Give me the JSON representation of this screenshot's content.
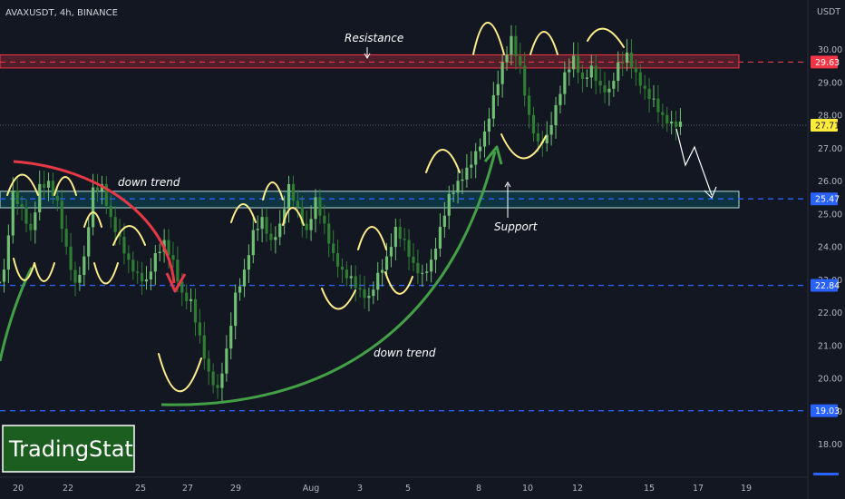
{
  "header": {
    "symbol_line": "AVAXUSDT, 4h, BINANCE",
    "currency": "USDT"
  },
  "logo": {
    "text": "TradingStat"
  },
  "colors": {
    "up": "#4caf50",
    "down": "#4caf50",
    "resistance": "#f23645",
    "support": "#2962ff",
    "curve_red": "#e53946",
    "curve_green": "#43a047",
    "highlight": "#ffee8a"
  },
  "annotations": {
    "resistance": "Resistance",
    "support": "Support",
    "down_trend_upper": "down trend",
    "down_trend_lower": "down trend"
  },
  "chart_data": {
    "type": "candlestick",
    "ylim": [
      17.2,
      31.0
    ],
    "y_ticks": [
      18.0,
      19.0,
      20.0,
      21.0,
      22.0,
      23.0,
      24.0,
      25.0,
      26.0,
      27.0,
      28.0,
      29.0,
      30.0
    ],
    "x_ticks": [
      "20",
      "22",
      "25",
      "27",
      "29",
      "Aug",
      "3",
      "5",
      "8",
      "10",
      "12",
      "15",
      "17",
      "19"
    ],
    "levels": [
      {
        "label": "29.63",
        "value": 29.63,
        "kind": "resistance"
      },
      {
        "label": "27.71",
        "value": 27.71,
        "kind": "current"
      },
      {
        "label": "25.47",
        "value": 25.47,
        "kind": "support"
      },
      {
        "label": "22.84",
        "value": 22.84,
        "kind": "support"
      },
      {
        "label": "19.03",
        "value": 19.03,
        "kind": "support"
      }
    ],
    "zones": [
      {
        "name": "resistance",
        "from": 29.45,
        "to": 29.85
      },
      {
        "name": "support",
        "from": 25.2,
        "to": 25.7
      }
    ],
    "closes": [
      23.2,
      25.6,
      25.1,
      24.4,
      25.8,
      25.9,
      25.3,
      23.9,
      22.8,
      23.6,
      25.7,
      25.8,
      24.8,
      24.2,
      23.5,
      23.1,
      22.9,
      23.7,
      24.1,
      23.5,
      22.5,
      22.3,
      21.2,
      20.1,
      19.6,
      20.8,
      22.5,
      23.2,
      24.4,
      24.8,
      24.1,
      24.6,
      25.8,
      25.1,
      24.4,
      25.4,
      24.6,
      23.7,
      23.2,
      23.0,
      22.6,
      22.4,
      23.1,
      23.6,
      24.5,
      24.1,
      23.4,
      23.1,
      23.5,
      24.5,
      25.5,
      25.9,
      26.3,
      26.8,
      27.4,
      28.5,
      29.5,
      30.3,
      29.4,
      27.9,
      27.1,
      27.3,
      28.2,
      29.2,
      29.7,
      29.0,
      29.4,
      28.8,
      28.7,
      29.5,
      29.8,
      29.2,
      28.7,
      28.4,
      27.9,
      27.7,
      27.7
    ]
  }
}
